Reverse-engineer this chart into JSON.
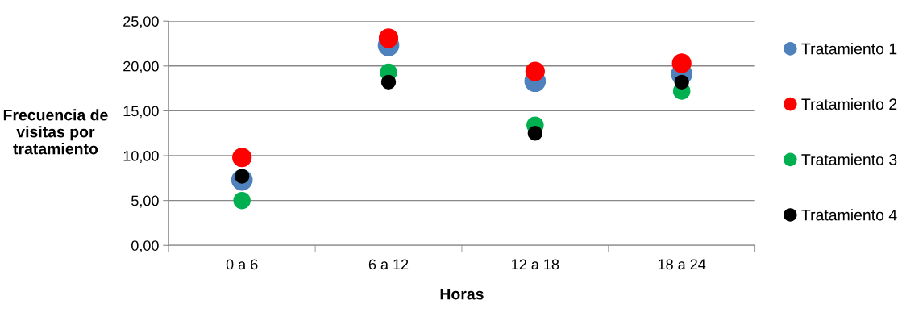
{
  "chart_data": {
    "type": "scatter",
    "xlabel": "Horas",
    "ylabel": "Frecuencia de\nvisitas por\ntratamiento",
    "categories": [
      "0 a 6",
      "6 a 12",
      "12 a 18",
      "18 a 24"
    ],
    "series": [
      {
        "name": "Tratamiento 1",
        "color": "#4f81bd",
        "values": [
          7.3,
          22.3,
          18.3,
          19.1
        ]
      },
      {
        "name": "Tratamiento 2",
        "color": "#ff0000",
        "values": [
          9.8,
          23.1,
          19.4,
          20.3
        ]
      },
      {
        "name": "Tratamiento 3",
        "color": "#00b050",
        "values": [
          5.0,
          19.3,
          13.4,
          17.2
        ]
      },
      {
        "name": "Tratamiento 4",
        "color": "#000000",
        "values": [
          7.7,
          18.2,
          12.5,
          18.2
        ]
      }
    ],
    "ylim": [
      0,
      25
    ],
    "yticks": [
      {
        "value": 0,
        "label": "0,00"
      },
      {
        "value": 5,
        "label": "5,00"
      },
      {
        "value": 10,
        "label": "10,00"
      },
      {
        "value": 15,
        "label": "15,00"
      },
      {
        "value": 20,
        "label": "20,00"
      },
      {
        "value": 25,
        "label": "25,00"
      }
    ],
    "grid": "y",
    "legend": "right",
    "marker": "circle"
  }
}
